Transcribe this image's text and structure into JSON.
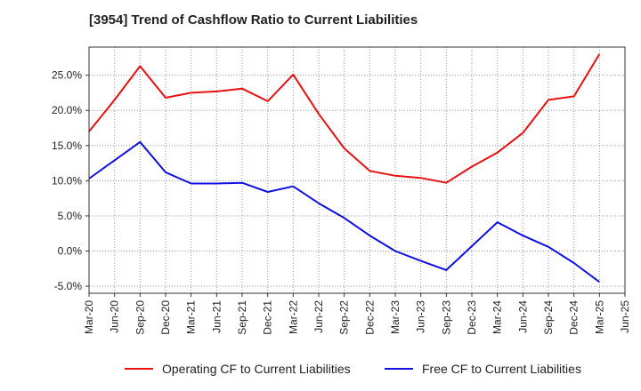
{
  "chart_data": {
    "type": "line",
    "title": "[3954]  Trend of Cashflow Ratio to Current Liabilities",
    "xlabel": "",
    "ylabel": "",
    "x": [
      "Mar-20",
      "Jun-20",
      "Sep-20",
      "Dec-20",
      "Mar-21",
      "Jun-21",
      "Sep-21",
      "Dec-21",
      "Mar-22",
      "Jun-22",
      "Sep-22",
      "Dec-22",
      "Mar-23",
      "Jun-23",
      "Sep-23",
      "Dec-23",
      "Mar-24",
      "Jun-24",
      "Sep-24",
      "Dec-24",
      "Mar-25",
      "Jun-25"
    ],
    "y_ticks": [
      -5.0,
      0.0,
      5.0,
      10.0,
      15.0,
      20.0,
      25.0
    ],
    "y_tick_labels": [
      "-5.0%",
      "0.0%",
      "5.0%",
      "10.0%",
      "15.0%",
      "20.0%",
      "25.0%"
    ],
    "ylim": [
      -6.0,
      29.0
    ],
    "grid": true,
    "legend_position": "bottom",
    "series": [
      {
        "name": "Operating CF to Current Liabilities",
        "color": "#e81010",
        "values": [
          17.0,
          21.5,
          26.3,
          21.8,
          22.5,
          22.7,
          23.1,
          21.3,
          25.1,
          19.5,
          14.6,
          11.4,
          10.7,
          10.4,
          9.7,
          12.0,
          14.0,
          16.8,
          21.5,
          22.0,
          28.0,
          null
        ]
      },
      {
        "name": "Free CF to Current Liabilities",
        "color": "#1010e0",
        "values": [
          10.3,
          12.9,
          15.5,
          11.2,
          9.6,
          9.6,
          9.7,
          8.4,
          9.2,
          6.8,
          4.7,
          2.2,
          0.0,
          -1.4,
          -2.7,
          0.7,
          4.1,
          2.2,
          0.6,
          -1.7,
          -4.4,
          null
        ]
      }
    ]
  }
}
